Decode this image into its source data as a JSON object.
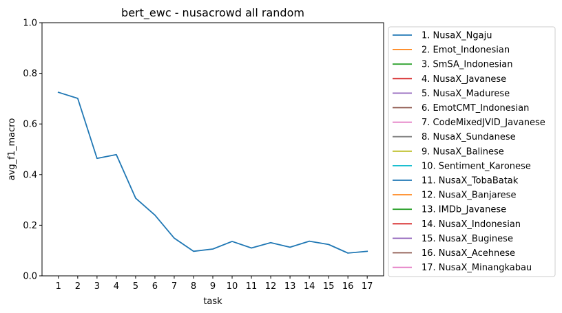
{
  "chart_data": {
    "type": "line",
    "title": "bert_ewc - nusacrowd all random",
    "xlabel": "task",
    "ylabel": "avg_f1_macro",
    "x": [
      1,
      2,
      3,
      4,
      5,
      6,
      7,
      8,
      9,
      10,
      11,
      12,
      13,
      14,
      15,
      16,
      17
    ],
    "xlim": [
      0.15,
      17.85
    ],
    "ylim": [
      0.0,
      1.0
    ],
    "yticks": [
      "0.0",
      "0.2",
      "0.4",
      "0.6",
      "0.8",
      "1.0"
    ],
    "xticks": [
      "1",
      "2",
      "3",
      "4",
      "5",
      "6",
      "7",
      "8",
      "9",
      "10",
      "11",
      "12",
      "13",
      "14",
      "15",
      "16",
      "17"
    ],
    "grid": false,
    "legend_position": "outside-right",
    "series": [
      {
        "name": "1. NusaX_Ngaju",
        "color": "#1f77b4",
        "values": [
          0.725,
          0.701,
          0.464,
          0.479,
          0.307,
          0.24,
          0.149,
          0.097,
          0.106,
          0.136,
          0.11,
          0.131,
          0.113,
          0.137,
          0.124,
          0.09,
          0.097
        ]
      }
    ],
    "legend": [
      {
        "label": "1. NusaX_Ngaju",
        "color": "#1f77b4"
      },
      {
        "label": "2. Emot_Indonesian",
        "color": "#ff7f0e"
      },
      {
        "label": "3. SmSA_Indonesian",
        "color": "#2ca02c"
      },
      {
        "label": "4. NusaX_Javanese",
        "color": "#d62728"
      },
      {
        "label": "5. NusaX_Madurese",
        "color": "#9467bd"
      },
      {
        "label": "6. EmotCMT_Indonesian",
        "color": "#8c564b"
      },
      {
        "label": "7. CodeMixedJVID_Javanese",
        "color": "#e377c2"
      },
      {
        "label": "8. NusaX_Sundanese",
        "color": "#7f7f7f"
      },
      {
        "label": "9. NusaX_Balinese",
        "color": "#bcbd22"
      },
      {
        "label": "10. Sentiment_Karonese",
        "color": "#17becf"
      },
      {
        "label": "11. NusaX_TobaBatak",
        "color": "#1f77b4"
      },
      {
        "label": "12. NusaX_Banjarese",
        "color": "#ff7f0e"
      },
      {
        "label": "13. IMDb_Javanese",
        "color": "#2ca02c"
      },
      {
        "label": "14. NusaX_Indonesian",
        "color": "#d62728"
      },
      {
        "label": "15. NusaX_Buginese",
        "color": "#9467bd"
      },
      {
        "label": "16. NusaX_Acehnese",
        "color": "#8c564b"
      },
      {
        "label": "17. NusaX_Minangkabau",
        "color": "#e377c2"
      }
    ]
  }
}
